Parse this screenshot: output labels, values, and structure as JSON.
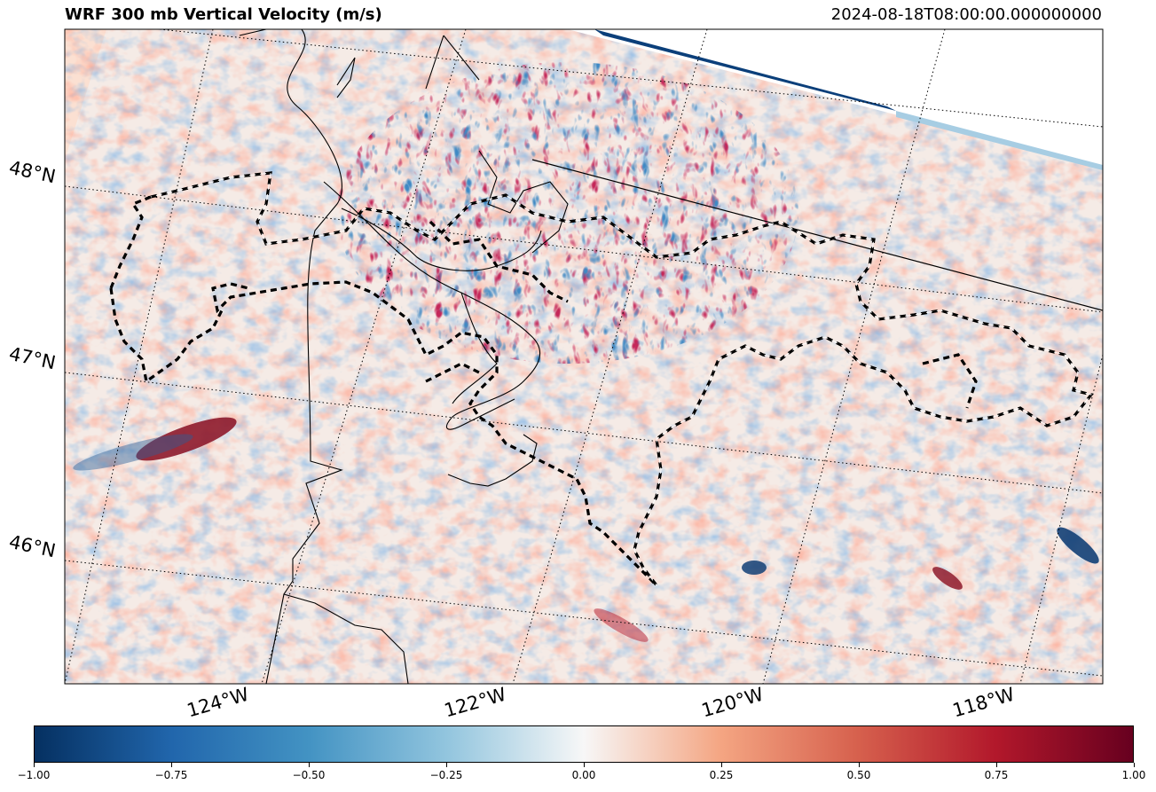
{
  "header": {
    "title": "WRF 300 mb Vertical Velocity (m/s)",
    "timestamp": "2024-08-18T08:00:00.000000000"
  },
  "map": {
    "lat_labels": [
      "48°N",
      "47°N",
      "46°N"
    ],
    "lon_labels": [
      "124°W",
      "122°W",
      "120°W",
      "118°W"
    ],
    "colormap": "RdBu_r",
    "colors": {
      "strong_down": "#053061",
      "neutral": "#f7f7f7",
      "strong_up": "#67001f",
      "coastline": "#000000",
      "state_border": "#000000"
    }
  },
  "colorbar": {
    "ticks": [
      "−1.00",
      "−0.75",
      "−0.50",
      "−0.25",
      "0.00",
      "0.25",
      "0.50",
      "0.75",
      "1.00"
    ],
    "range": [
      -1.0,
      1.0
    ]
  }
}
